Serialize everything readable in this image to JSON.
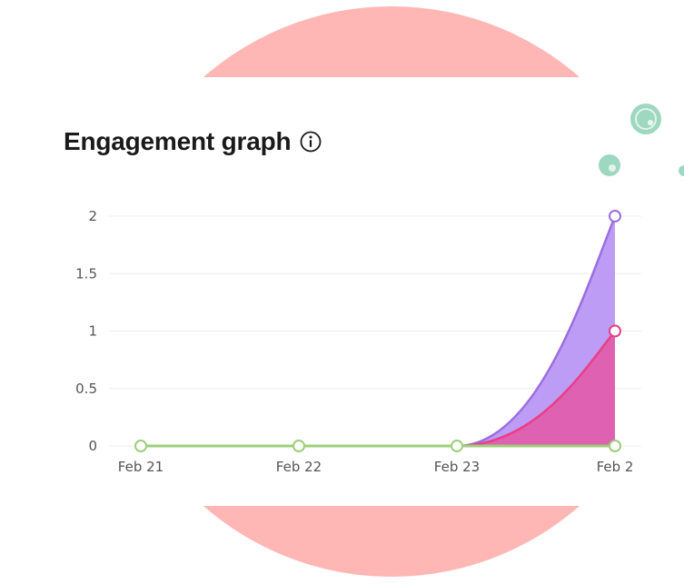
{
  "header": {
    "title": "Engagement graph",
    "info_icon": "info-icon"
  },
  "colors": {
    "backdrop_shape": "#ffb7b5",
    "avatar_bubble": "#9fd8c1",
    "series_purple_line": "#9a6ee0",
    "series_purple_fill": "#bd9cf5",
    "series_pink_line": "#e93f86",
    "series_pink_fill": "#e05fae",
    "series_green": "#9ccf7a",
    "grid": "#eeeeee"
  },
  "chart_data": {
    "type": "area",
    "x": [
      "Feb 21",
      "Feb 22",
      "Feb 23",
      "Feb 2"
    ],
    "ylim": [
      0,
      2
    ],
    "yticks": [
      "0",
      "0.5",
      "1",
      "1.5",
      "2"
    ],
    "grid": true,
    "series": [
      {
        "values": [
          0,
          0,
          0,
          2
        ]
      },
      {
        "values": [
          0,
          0,
          0,
          1
        ]
      },
      {
        "values": [
          0,
          0,
          0,
          0
        ]
      }
    ]
  }
}
